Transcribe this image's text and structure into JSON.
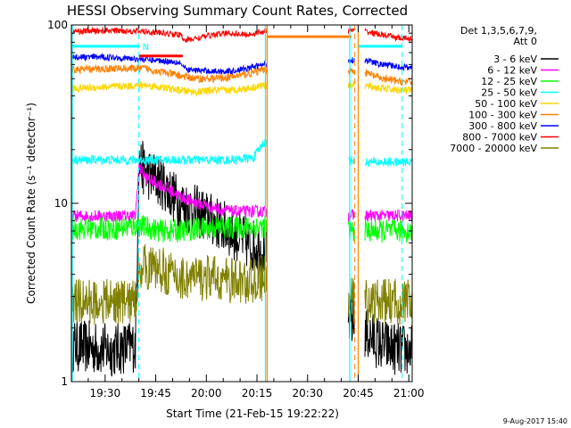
{
  "chart_data": {
    "type": "line",
    "title": "HESSI Observing Summary Count Rates, Corrected",
    "xlabel": "Start Time (21-Feb-15 19:22:22)",
    "ylabel": "Corrected Count Rate (s⁻¹ detector⁻¹)",
    "yscale": "log",
    "ylim": [
      1,
      100
    ],
    "xlim_minutes": [
      -2,
      99
    ],
    "x_ticks": [
      {
        "label": "19:30",
        "min": 8
      },
      {
        "label": "19:45",
        "min": 23
      },
      {
        "label": "20:00",
        "min": 38
      },
      {
        "label": "20:15",
        "min": 53
      },
      {
        "label": "20:30",
        "min": 68
      },
      {
        "label": "20:45",
        "min": 83
      },
      {
        "label": "21:00",
        "min": 98
      }
    ],
    "y_ticks": [
      {
        "label": "1",
        "val": 1
      },
      {
        "label": "10",
        "val": 10
      },
      {
        "label": "100",
        "val": 100
      }
    ],
    "legend_header": [
      "Det 1,3,5,6,7,9,",
      "Att 0"
    ],
    "legend_position": "right",
    "timestamp": "9-Aug-2017 15:40",
    "marker_text": "N",
    "data_gaps_minutes": [
      [
        56,
        80
      ],
      [
        82,
        85
      ]
    ],
    "gap_edges_minutes": {
      "cyan": [
        55.5,
        80.5
      ],
      "orange": [
        56,
        83
      ]
    },
    "dashed_markers_minutes": [
      {
        "min": 18,
        "color": "#00ffff"
      },
      {
        "min": 82,
        "color": "#ff8000"
      },
      {
        "min": 96,
        "color": "#00ffff"
      }
    ],
    "flat_segments": [
      {
        "color": "#00ffff",
        "from": -2,
        "to": 18,
        "value": 76
      },
      {
        "color": "#ff0000",
        "from": 18,
        "to": 31,
        "value": 67
      },
      {
        "color": "#ff8000",
        "from": 56,
        "to": 81,
        "value": 86
      },
      {
        "color": "#00ffff",
        "from": 83,
        "to": 96,
        "value": 76
      }
    ],
    "series": [
      {
        "name": "3 - 6 keV",
        "color": "#000000",
        "x": [
          -2,
          10,
          17,
          18,
          20,
          25,
          30,
          35,
          40,
          45,
          50,
          55,
          83,
          90,
          96
        ],
        "y": [
          1.6,
          1.5,
          1.6,
          17,
          15,
          13,
          10,
          9,
          8,
          7,
          6,
          5.5,
          2,
          1.6,
          1.5
        ],
        "noise": 0.35
      },
      {
        "name": "6 - 12 keV",
        "color": "#ff00ff",
        "x": [
          -2,
          10,
          17,
          18,
          20,
          25,
          30,
          35,
          40,
          45,
          50,
          55,
          83,
          90,
          96
        ],
        "y": [
          8.5,
          8.5,
          8.5,
          16,
          14,
          12.5,
          11,
          10,
          9.5,
          9,
          9,
          9,
          8.5,
          8.5,
          8.5
        ],
        "noise": 0.08
      },
      {
        "name": "12 - 25 keV",
        "color": "#00ff00",
        "x": [
          -2,
          10,
          18,
          25,
          30,
          35,
          40,
          45,
          50,
          55,
          83,
          90,
          96
        ],
        "y": [
          7.2,
          7.2,
          7.5,
          7,
          7,
          7.2,
          7.3,
          7.3,
          7.3,
          7.4,
          7,
          7,
          7
        ],
        "noise": 0.15
      },
      {
        "name": "25 - 50 keV",
        "color": "#00ffff",
        "x": [
          -2,
          30,
          45,
          52,
          55,
          84,
          90,
          96
        ],
        "y": [
          17.5,
          17.5,
          17.5,
          18,
          22,
          17,
          17,
          17
        ],
        "noise": 0.06
      },
      {
        "name": "50 - 100 keV",
        "color": "#ffd700",
        "x": [
          -2,
          10,
          20,
          30,
          35,
          40,
          45,
          50,
          55,
          84,
          90,
          96
        ],
        "y": [
          44,
          45,
          46,
          43,
          42,
          43,
          43,
          44,
          46,
          46,
          44,
          43
        ],
        "noise": 0.05
      },
      {
        "name": "100 - 300 keV",
        "color": "#ff8000",
        "x": [
          -2,
          10,
          20,
          30,
          35,
          40,
          45,
          50,
          55,
          84,
          90,
          96
        ],
        "y": [
          56,
          57,
          57,
          52,
          50,
          50,
          51,
          53,
          56,
          55,
          50,
          48
        ],
        "noise": 0.05
      },
      {
        "name": "300 - 800 keV",
        "color": "#0000ff",
        "x": [
          -2,
          10,
          20,
          30,
          32,
          40,
          45,
          50,
          55,
          84,
          90,
          96
        ],
        "y": [
          66,
          66,
          64,
          62,
          56,
          55,
          55,
          57,
          60,
          64,
          60,
          58
        ],
        "noise": 0.04
      },
      {
        "name": "800 - 7000 keV",
        "color": "#ff0000",
        "x": [
          -2,
          10,
          20,
          30,
          32,
          40,
          45,
          50,
          55,
          84,
          90,
          96
        ],
        "y": [
          92,
          93,
          92,
          88,
          82,
          88,
          90,
          88,
          92,
          93,
          88,
          84
        ],
        "noise": 0.04
      },
      {
        "name": "7000 - 20000 keV",
        "color": "#808000",
        "x": [
          -2,
          17,
          18,
          25,
          30,
          35,
          40,
          50,
          55,
          84,
          96
        ],
        "y": [
          2.8,
          2.8,
          4.5,
          4.2,
          3.8,
          3.8,
          3.8,
          3.6,
          3.8,
          2.8,
          2.8
        ],
        "noise": 0.3
      }
    ]
  }
}
